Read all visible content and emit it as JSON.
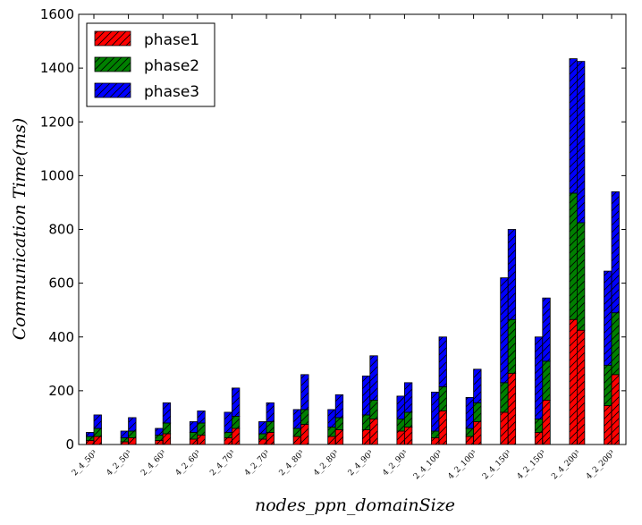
{
  "chart_data": {
    "type": "bar",
    "stacked": true,
    "xlabel": "nodes_ppn_domainSize",
    "ylabel": "Communication Time(ms)",
    "ylim": [
      0,
      1600
    ],
    "yticks": [
      0,
      200,
      400,
      600,
      800,
      1000,
      1200,
      1400,
      1600
    ],
    "categories": [
      "2_4_50³",
      "4_2_50³",
      "2_4_60³",
      "4_2_60³",
      "2_4_70³",
      "4_2_70³",
      "2_4_80³",
      "4_2_80³",
      "2_4_90³",
      "4_2_90³",
      "2_4_100³",
      "4_2_100³",
      "2_4_150³",
      "4_2_150³",
      "2_4_200³",
      "4_2_200³"
    ],
    "legend_position": "top-left",
    "colors": {
      "phase1": "#ff0000",
      "phase2": "#008000",
      "phase3": "#0000ff"
    },
    "series": [
      {
        "name": "phase1",
        "bar1": [
          15,
          10,
          15,
          20,
          25,
          20,
          30,
          30,
          55,
          50,
          25,
          30,
          120,
          45,
          465,
          145
        ],
        "bar2": [
          30,
          25,
          40,
          35,
          60,
          45,
          75,
          55,
          95,
          65,
          125,
          85,
          265,
          165,
          425,
          260
        ]
      },
      {
        "name": "phase2",
        "bar1": [
          15,
          15,
          20,
          25,
          20,
          20,
          30,
          35,
          55,
          45,
          25,
          30,
          110,
          50,
          470,
          150
        ],
        "bar2": [
          30,
          25,
          40,
          45,
          45,
          40,
          55,
          45,
          70,
          55,
          90,
          70,
          200,
          145,
          400,
          230
        ]
      },
      {
        "name": "phase3",
        "bar1": [
          15,
          25,
          25,
          40,
          75,
          45,
          70,
          65,
          145,
          85,
          145,
          115,
          390,
          305,
          500,
          350
        ],
        "bar2": [
          50,
          50,
          75,
          45,
          105,
          70,
          130,
          85,
          165,
          110,
          185,
          125,
          335,
          235,
          600,
          450
        ]
      }
    ],
    "totals_bar1": [
      45,
      50,
      60,
      85,
      120,
      85,
      130,
      130,
      255,
      180,
      195,
      175,
      620,
      400,
      1435,
      645
    ],
    "totals_bar2": [
      110,
      100,
      155,
      125,
      210,
      155,
      260,
      185,
      330,
      230,
      400,
      280,
      800,
      545,
      1425,
      940
    ]
  }
}
